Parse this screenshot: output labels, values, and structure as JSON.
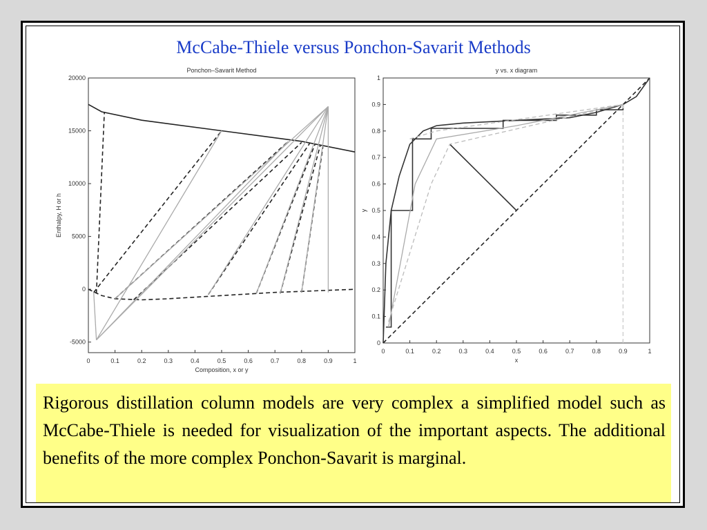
{
  "slide": {
    "title": "McCabe-Thiele versus Ponchon-Savarit Methods",
    "caption": "Rigorous distillation column models are very complex a simplified model such as McCabe-Thiele is needed for visualization of the important aspects. The additional benefits of the more complex Ponchon-Savarit is marginal."
  },
  "colors": {
    "title": "#1a3cc8",
    "caption_bg": "#ffff88",
    "slide_bg": "#d9d9d9"
  },
  "chart_data": [
    {
      "type": "line",
      "title": "Ponchon–Savarit Method",
      "xlabel": "Composition, x or y",
      "ylabel": "Enthalpy, H or h",
      "xlim": [
        0,
        1
      ],
      "ylim": [
        -6000,
        20000
      ],
      "xticks": [
        0,
        0.1,
        0.2,
        0.3,
        0.4,
        0.5,
        0.6,
        0.7,
        0.8,
        0.9,
        1
      ],
      "yticks": [
        -5000,
        0,
        5000,
        10000,
        15000,
        20000
      ],
      "grid": false,
      "series": [
        {
          "style": "solid",
          "color": "#222222",
          "x": [
            0,
            0.05,
            0.2,
            0.5,
            0.8,
            1.0
          ],
          "y": [
            17500,
            16800,
            16000,
            15000,
            14000,
            13000
          ]
        },
        {
          "style": "dashed",
          "color": "#222222",
          "x": [
            0,
            0.05,
            0.1,
            0.2,
            0.3,
            0.5,
            0.7,
            1.0
          ],
          "y": [
            0,
            -600,
            -900,
            -1000,
            -900,
            -600,
            -300,
            0
          ]
        },
        {
          "style": "dashed",
          "color": "#222222",
          "x": [
            0.03,
            0.06
          ],
          "y": [
            -400,
            16800
          ]
        },
        {
          "style": "dashed",
          "color": "#222222",
          "x": [
            0.02,
            0.5
          ],
          "y": [
            -300,
            15000
          ]
        },
        {
          "style": "dashed",
          "color": "#222222",
          "x": [
            0.1,
            0.75
          ],
          "y": [
            -900,
            14000
          ]
        },
        {
          "style": "dashed",
          "color": "#222222",
          "x": [
            0.17,
            0.8
          ],
          "y": [
            -1000,
            13900
          ]
        },
        {
          "style": "dashed",
          "color": "#222222",
          "x": [
            0.45,
            0.83
          ],
          "y": [
            -500,
            13800
          ]
        },
        {
          "style": "dashed",
          "color": "#222222",
          "x": [
            0.63,
            0.85
          ],
          "y": [
            -400,
            13700
          ]
        },
        {
          "style": "dashed",
          "color": "#222222",
          "x": [
            0.72,
            0.87
          ],
          "y": [
            -400,
            13600
          ]
        },
        {
          "style": "dashed",
          "color": "#222222",
          "x": [
            0.8,
            0.88
          ],
          "y": [
            -300,
            13500
          ]
        },
        {
          "style": "solid",
          "color": "#aaaaaa",
          "x": [
            0.02,
            0.03
          ],
          "y": [
            -300,
            -4800
          ]
        },
        {
          "style": "solid",
          "color": "#aaaaaa",
          "x": [
            0.03,
            0.5
          ],
          "y": [
            -4800,
            15000
          ]
        },
        {
          "style": "solid",
          "color": "#aaaaaa",
          "x": [
            0.03,
            0.75
          ],
          "y": [
            -4800,
            14000
          ]
        },
        {
          "style": "solid",
          "color": "#aaaaaa",
          "x": [
            0.03,
            0.9
          ],
          "y": [
            -4800,
            17300
          ]
        },
        {
          "style": "solid",
          "color": "#aaaaaa",
          "x": [
            0.1,
            0.9
          ],
          "y": [
            -900,
            17300
          ]
        },
        {
          "style": "solid",
          "color": "#aaaaaa",
          "x": [
            0.45,
            0.9
          ],
          "y": [
            -500,
            17300
          ]
        },
        {
          "style": "solid",
          "color": "#aaaaaa",
          "x": [
            0.63,
            0.9
          ],
          "y": [
            -400,
            17300
          ]
        },
        {
          "style": "solid",
          "color": "#aaaaaa",
          "x": [
            0.72,
            0.9
          ],
          "y": [
            -400,
            17300
          ]
        },
        {
          "style": "solid",
          "color": "#aaaaaa",
          "x": [
            0.8,
            0.9
          ],
          "y": [
            -300,
            17300
          ]
        },
        {
          "style": "solid",
          "color": "#aaaaaa",
          "x": [
            0.9,
            0.9
          ],
          "y": [
            -300,
            17300
          ]
        }
      ]
    },
    {
      "type": "line",
      "title": "y vs. x diagram",
      "xlabel": "x",
      "ylabel": "y",
      "xlim": [
        0,
        1
      ],
      "ylim": [
        0,
        1
      ],
      "xticks": [
        0,
        0.1,
        0.2,
        0.3,
        0.4,
        0.5,
        0.6,
        0.7,
        0.8,
        0.9,
        1
      ],
      "yticks": [
        0,
        0.1,
        0.2,
        0.3,
        0.4,
        0.5,
        0.6,
        0.7,
        0.8,
        0.9,
        1
      ],
      "grid": false,
      "series": [
        {
          "style": "dashed",
          "color": "#222222",
          "x": [
            0,
            1
          ],
          "y": [
            0,
            1
          ]
        },
        {
          "style": "solid",
          "color": "#333333",
          "x": [
            0,
            0.01,
            0.03,
            0.06,
            0.1,
            0.15,
            0.2,
            0.3,
            0.5,
            0.7,
            0.8,
            0.9,
            0.95,
            1.0
          ],
          "y": [
            0,
            0.3,
            0.5,
            0.63,
            0.75,
            0.8,
            0.82,
            0.83,
            0.84,
            0.85,
            0.87,
            0.9,
            0.93,
            1.0
          ]
        },
        {
          "style": "solid",
          "color": "#333333",
          "x": [
            0.01,
            0.03,
            0.03,
            0.06,
            0.06,
            0.11,
            0.11,
            0.18,
            0.18,
            0.45,
            0.45,
            0.65,
            0.65,
            0.8,
            0.8,
            0.9,
            0.9
          ],
          "y": [
            0.06,
            0.06,
            0.5,
            0.5,
            0.5,
            0.5,
            0.77,
            0.77,
            0.81,
            0.81,
            0.84,
            0.84,
            0.86,
            0.86,
            0.88,
            0.88,
            0.9
          ]
        },
        {
          "style": "solid",
          "color": "#333333",
          "x": [
            0.25,
            0.5
          ],
          "y": [
            0.75,
            0.5
          ]
        },
        {
          "style": "solid",
          "color": "#aaaaaa",
          "x": [
            0.02,
            0.12,
            0.2,
            0.5,
            0.9
          ],
          "y": [
            0.06,
            0.6,
            0.77,
            0.82,
            0.9
          ]
        },
        {
          "style": "dashed",
          "color": "#bbbbbb",
          "x": [
            0.02,
            0.18,
            0.25,
            0.9
          ],
          "y": [
            0.08,
            0.6,
            0.75,
            0.9
          ]
        },
        {
          "style": "dashed",
          "color": "#bbbbbb",
          "x": [
            0.1,
            0.2,
            0.9
          ],
          "y": [
            0.77,
            0.8,
            0.9
          ]
        },
        {
          "style": "dashed",
          "color": "#cccccc",
          "x": [
            0.9,
            0.9
          ],
          "y": [
            0,
            0.9
          ]
        }
      ]
    }
  ]
}
